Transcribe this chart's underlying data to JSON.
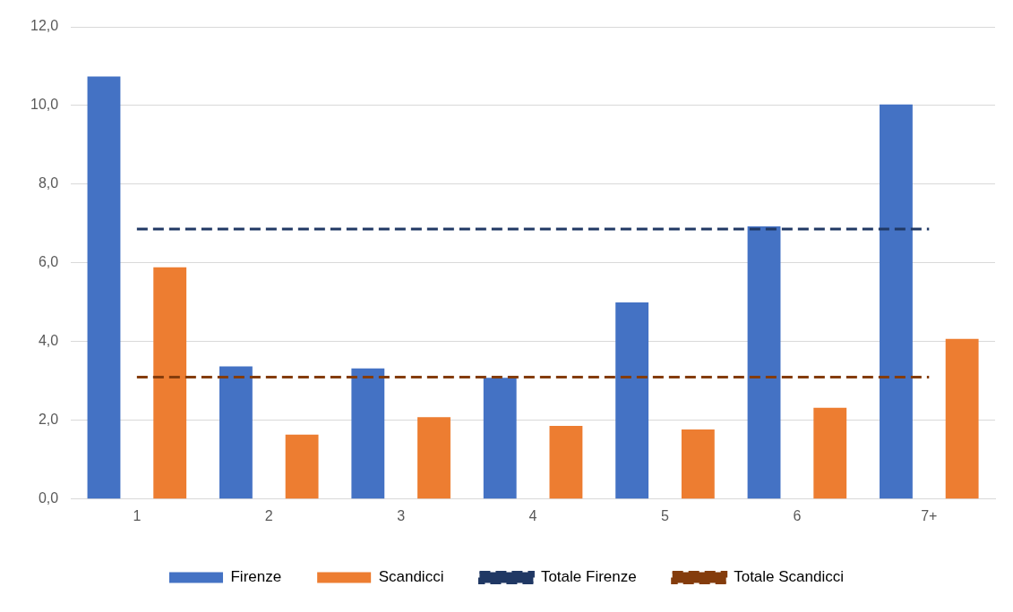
{
  "chart_data": {
    "type": "bar",
    "categories": [
      "1",
      "2",
      "3",
      "4",
      "5",
      "6",
      "7+"
    ],
    "series": [
      {
        "name": "Firenze",
        "color": "#4472c4",
        "values": [
          10.74,
          3.37,
          3.32,
          3.08,
          5.0,
          6.93,
          10.03
        ]
      },
      {
        "name": "Scandicci",
        "color": "#ed7d31",
        "values": [
          5.89,
          1.64,
          2.08,
          1.86,
          1.77,
          2.32,
          4.07
        ]
      },
      {
        "name": "Totale Firenze",
        "type": "line",
        "color": "#203864",
        "line_style": "dashed",
        "values": [
          6.86,
          6.86,
          6.86,
          6.86,
          6.86,
          6.86,
          6.86
        ]
      },
      {
        "name": "Totale Scandicci",
        "type": "line",
        "color": "#843c0c",
        "line_style": "dashed",
        "values": [
          3.1,
          3.1,
          3.1,
          3.1,
          3.1,
          3.1,
          3.1
        ]
      }
    ],
    "ylim": [
      0,
      12
    ],
    "yticks": [
      {
        "value": 0,
        "label": "0,0"
      },
      {
        "value": 2,
        "label": "2,0"
      },
      {
        "value": 4,
        "label": "4,0"
      },
      {
        "value": 6,
        "label": "6,0"
      },
      {
        "value": 8,
        "label": "8,0"
      },
      {
        "value": 10,
        "label": "10,0"
      },
      {
        "value": 12,
        "label": "12,0"
      }
    ],
    "grid": "y",
    "legend": "bottom",
    "marker": "none"
  }
}
